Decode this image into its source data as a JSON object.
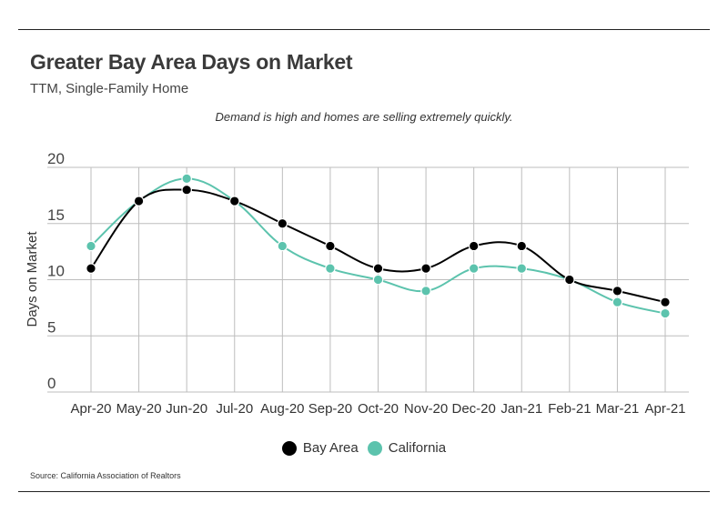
{
  "header": {
    "title": "Greater Bay Area Days on Market",
    "subtitle": "TTM, Single-Family Home",
    "annotation": "Demand is high and homes are selling extremely quickly."
  },
  "footer": {
    "source": "Source:  California Association of Realtors"
  },
  "chart_data": {
    "type": "line",
    "title": "Greater Bay Area Days on Market",
    "subtitle": "TTM, Single-Family Home",
    "xlabel": "",
    "ylabel": "Days on Market",
    "categories": [
      "Apr-20",
      "May-20",
      "Jun-20",
      "Jul-20",
      "Aug-20",
      "Sep-20",
      "Oct-20",
      "Nov-20",
      "Dec-20",
      "Jan-21",
      "Feb-21",
      "Mar-21",
      "Apr-21"
    ],
    "ylim": [
      0,
      20
    ],
    "yticks": [
      0,
      5,
      10,
      15,
      20
    ],
    "grid": true,
    "legend_position": "bottom",
    "series": [
      {
        "name": "Bay Area",
        "color": "#000000",
        "values": [
          11,
          17,
          18,
          17,
          15,
          13,
          11,
          11,
          13,
          13,
          10,
          9,
          8
        ]
      },
      {
        "name": "California",
        "color": "#5cc3ad",
        "values": [
          13,
          17,
          19,
          17,
          13,
          11,
          10,
          9,
          11,
          11,
          10,
          8,
          7
        ]
      }
    ],
    "annotations": [
      "Demand is high and homes are selling extremely quickly."
    ]
  }
}
